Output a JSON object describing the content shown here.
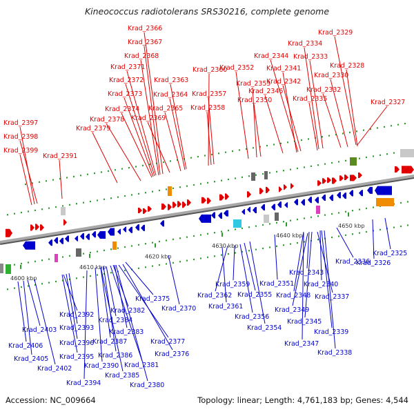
{
  "title": "Kineococcus radiotolerans SRS30216, complete genome",
  "footer": {
    "accession": "Accession: NC_009664",
    "info": "Topology: linear; Length: 4,761,183 bp; Genes: 4,544"
  },
  "colors": {
    "forward": "#e00000",
    "reverse": "#0000cc",
    "backbone": "#888888"
  },
  "ticks": [
    "4600 kbp",
    "4610 kbp",
    "4620 kbp",
    "4630 kbp",
    "4640 kbp",
    "4650 kbp"
  ],
  "forward_genes": [
    "Krad_2366",
    "Krad_2367",
    "Krad_2368",
    "Krad_2371",
    "Krad_2372",
    "Krad_2373",
    "Krad_2374",
    "Krad_2378",
    "Krad_2379",
    "Krad_2369",
    "Krad_2365",
    "Krad_2364",
    "Krad_2363",
    "Krad_2360",
    "Krad_2357",
    "Krad_2358",
    "Krad_2352",
    "Krad_2353",
    "Krad_2350",
    "Krad_2346",
    "Krad_2344",
    "Krad_2341",
    "Krad_2342",
    "Krad_2329",
    "Krad_2334",
    "Krad_2333",
    "Krad_2328",
    "Krad_2330",
    "Krad_2332",
    "Krad_2335",
    "Krad_2327",
    "Krad_2397",
    "Krad_2398",
    "Krad_2399",
    "Krad_2391"
  ],
  "reverse_genes": [
    "Krad_2325",
    "Krad_2326",
    "Krad_2336",
    "Krad_2343",
    "Krad_2340",
    "Krad_2351",
    "Krad_2348",
    "Krad_2337",
    "Krad_2349",
    "Krad_2345",
    "Krad_2339",
    "Krad_2347",
    "Krad_2338",
    "Krad_2359",
    "Krad_2362",
    "Krad_2361",
    "Krad_2355",
    "Krad_2356",
    "Krad_2354",
    "Krad_2375",
    "Krad_2370",
    "Krad_2382",
    "Krad_2384",
    "Krad_2383",
    "Krad_2387",
    "Krad_2377",
    "Krad_2376",
    "Krad_2386",
    "Krad_2381",
    "Krad_2390",
    "Krad_2385",
    "Krad_2380",
    "Krad_2392",
    "Krad_2393",
    "Krad_2396",
    "Krad_2395",
    "Krad_2394",
    "Krad_2403",
    "Krad_2406",
    "Krad_2405",
    "Krad_2402"
  ]
}
